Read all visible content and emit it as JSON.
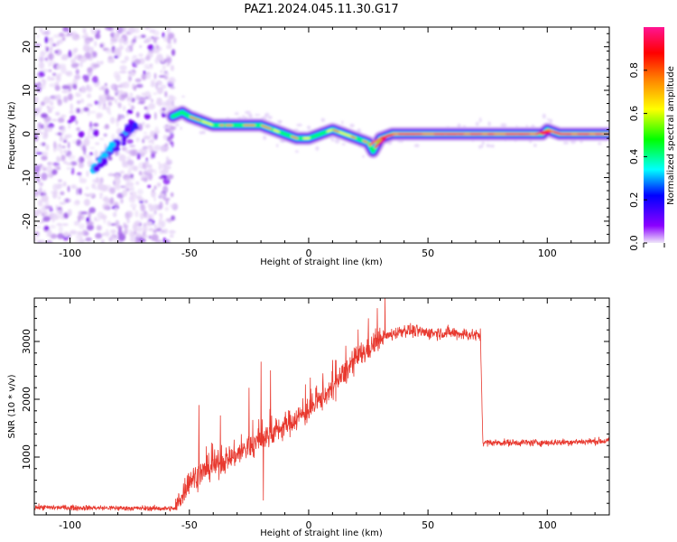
{
  "page_title": "PAZ1.2024.045.11.30.G17",
  "chart_data": [
    {
      "type": "heatmap",
      "name": "spectrogram",
      "xlabel": "Height of straight line (km)",
      "ylabel": "Frequency (Hz)",
      "xlim": [
        -115,
        126
      ],
      "ylim": [
        -25,
        24.5
      ],
      "xticks": [
        -100,
        -50,
        0,
        50,
        100
      ],
      "xtick_labels": [
        "-100",
        "-50",
        "0",
        "50",
        "100"
      ],
      "yticks": [
        -20,
        -10,
        0,
        10,
        20
      ],
      "ytick_labels": [
        "-20",
        "-10",
        "0",
        "10",
        "20"
      ],
      "colorbar": {
        "label": "Normalized spectral amplitude",
        "range": [
          0.0,
          1.0
        ],
        "ticks": [
          0.0,
          0.2,
          0.4,
          0.6,
          0.8
        ],
        "tick_labels": [
          "0.0",
          "0.2",
          "0.4",
          "0.6",
          "0.8"
        ],
        "colors": [
          "#f0e8fa",
          "#8b00ff",
          "#0000ff",
          "#00ffff",
          "#00ff00",
          "#ffff00",
          "#ff8000",
          "#ff0000",
          "#ff1493"
        ]
      },
      "ridge": {
        "x": [
          -57,
          -53,
          -50,
          -45,
          -40,
          -35,
          -30,
          -25,
          -20,
          -15,
          -10,
          -5,
          0,
          5,
          10,
          15,
          20,
          25,
          27,
          30,
          35,
          40,
          50,
          60,
          70,
          80,
          90,
          98,
          100,
          105,
          110,
          120,
          126
        ],
        "y": [
          4,
          5,
          4,
          3,
          2,
          2,
          2,
          2,
          2,
          1,
          0,
          -1,
          -1,
          0,
          1,
          0,
          -1,
          -2,
          -4,
          -1,
          0,
          0,
          0,
          0,
          0,
          0,
          0,
          0,
          1,
          0,
          0,
          0,
          0
        ]
      },
      "diagonal_feature": {
        "x": [
          -90,
          -72
        ],
        "y": [
          -8,
          3
        ]
      },
      "noise_region": {
        "x": [
          -115,
          -56
        ],
        "y": [
          -25,
          24.5
        ]
      }
    },
    {
      "type": "line",
      "name": "snr",
      "xlabel": "Height of straight line (km)",
      "ylabel": "SNR (10 * v/v)",
      "xlim": [
        -115,
        126
      ],
      "ylim": [
        0,
        3750
      ],
      "xticks": [
        -100,
        -50,
        0,
        50,
        100
      ],
      "xtick_labels": [
        "-100",
        "-50",
        "0",
        "50",
        "100"
      ],
      "yticks": [
        1000,
        2000,
        3000
      ],
      "ytick_labels": [
        "1000",
        "2000",
        "3000"
      ],
      "color": "#e8392f",
      "trend": {
        "x": [
          -115,
          -56,
          -50,
          -40,
          -30,
          -20,
          -10,
          0,
          10,
          20,
          30,
          40,
          50,
          60,
          72,
          73,
          80,
          100,
          126
        ],
        "y": [
          130,
          110,
          600,
          850,
          1050,
          1300,
          1550,
          1800,
          2200,
          2700,
          3050,
          3200,
          3150,
          3150,
          3100,
          1250,
          1250,
          1250,
          1280
        ]
      },
      "spikes": [
        {
          "x": -46,
          "y": 1900
        },
        {
          "x": -37,
          "y": 1720
        },
        {
          "x": -25,
          "y": 2200
        },
        {
          "x": -20,
          "y": 2650
        },
        {
          "x": -19,
          "y": 250
        },
        {
          "x": -16,
          "y": 2500
        },
        {
          "x": 3,
          "y": 2200
        },
        {
          "x": 6,
          "y": 2450
        },
        {
          "x": 10,
          "y": 2680
        },
        {
          "x": 25,
          "y": 3400
        },
        {
          "x": 32,
          "y": 3750
        }
      ]
    }
  ]
}
